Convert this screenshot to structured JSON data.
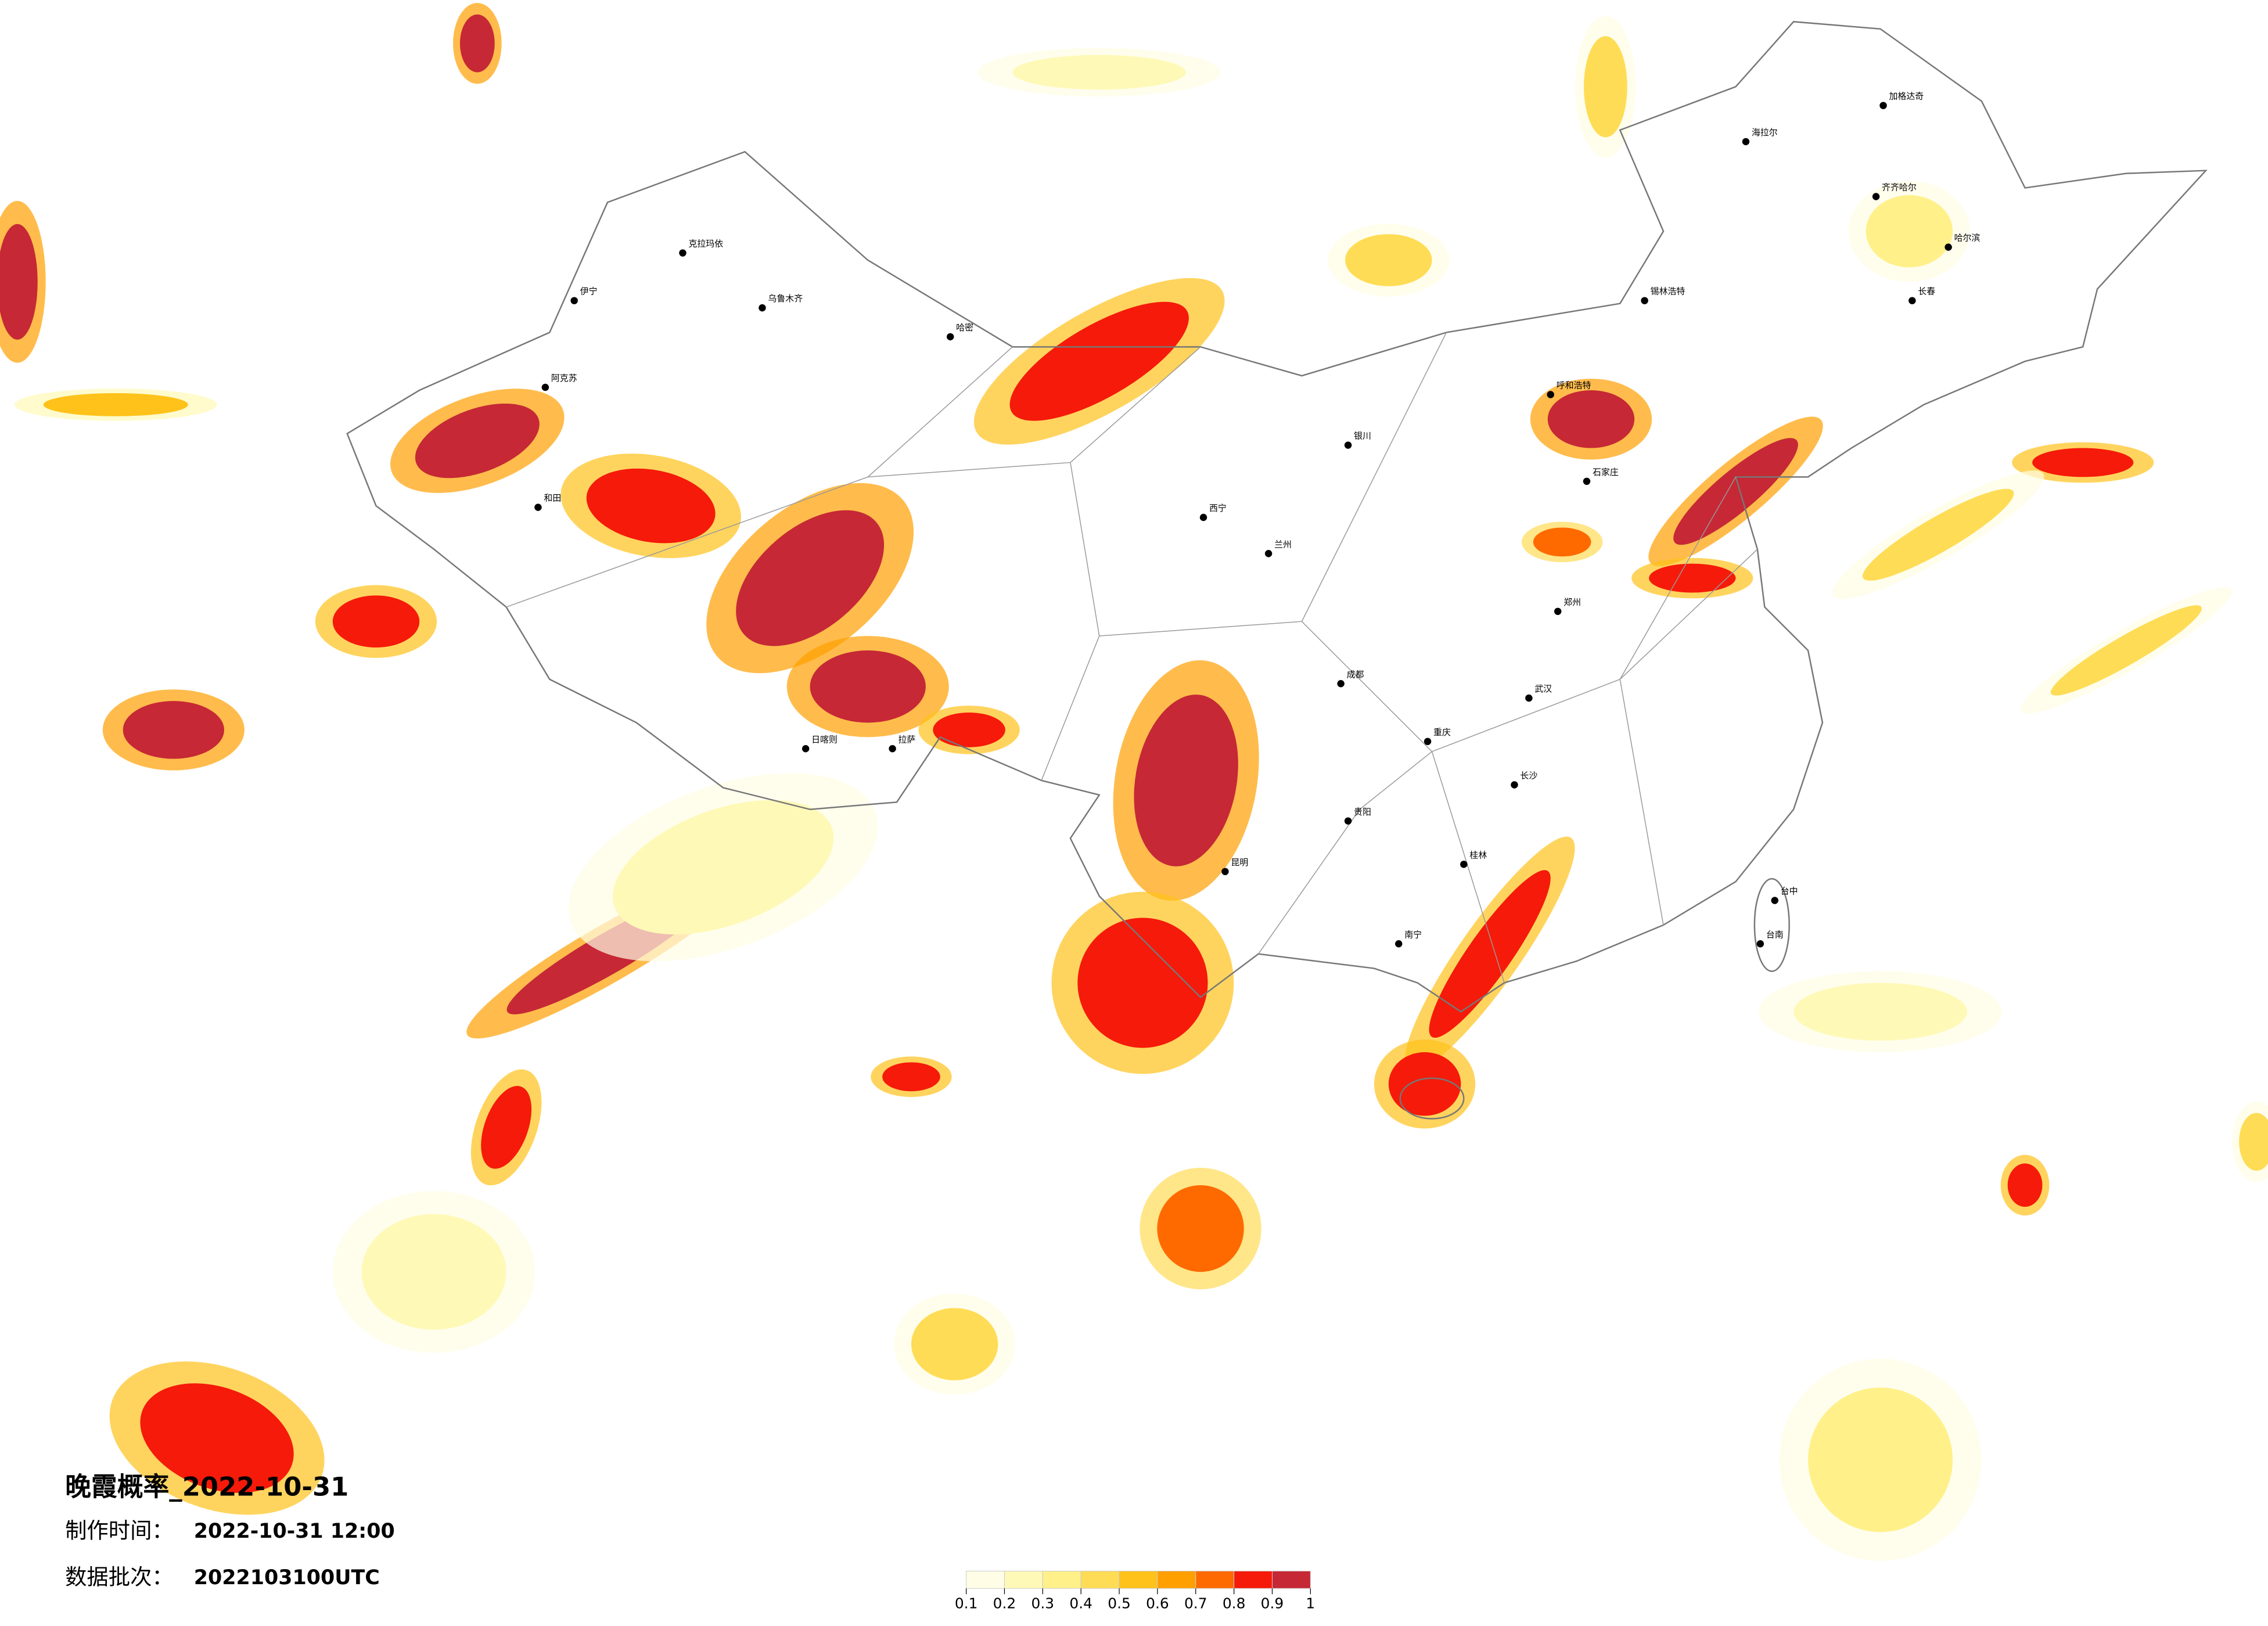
{
  "title": "晚霞概率_2022-10-31",
  "made_time": {
    "label": "制作时间：",
    "value": "2022-10-31 12:00"
  },
  "data_batch": {
    "label": "数据批次：",
    "value": "2022103100UTC"
  },
  "legend": {
    "ticks": [
      0.1,
      0.2,
      0.3,
      0.4,
      0.5,
      0.6,
      0.7,
      0.8,
      0.9,
      1
    ],
    "colors": [
      "#fffde6",
      "#fff9b8",
      "#fff08a",
      "#ffdc55",
      "#ffc21a",
      "#ff9f00",
      "#ff6a00",
      "#f51a0a",
      "#c62835"
    ]
  },
  "cities": [
    "克拉玛依",
    "乌鲁木齐",
    "伊宁",
    "阿克苏",
    "和田",
    "哈密",
    "海拉尔",
    "加格达奇",
    "齐齐哈尔",
    "哈尔滨",
    "长春",
    "锡林浩特",
    "呼和浩特",
    "石家庄",
    "拉萨",
    "日喀则",
    "成都",
    "重庆",
    "昆明",
    "贵阳",
    "南宁",
    "桂林",
    "长沙",
    "武汉",
    "郑州",
    "西宁",
    "兰州",
    "银川",
    "台中",
    "台南"
  ]
}
